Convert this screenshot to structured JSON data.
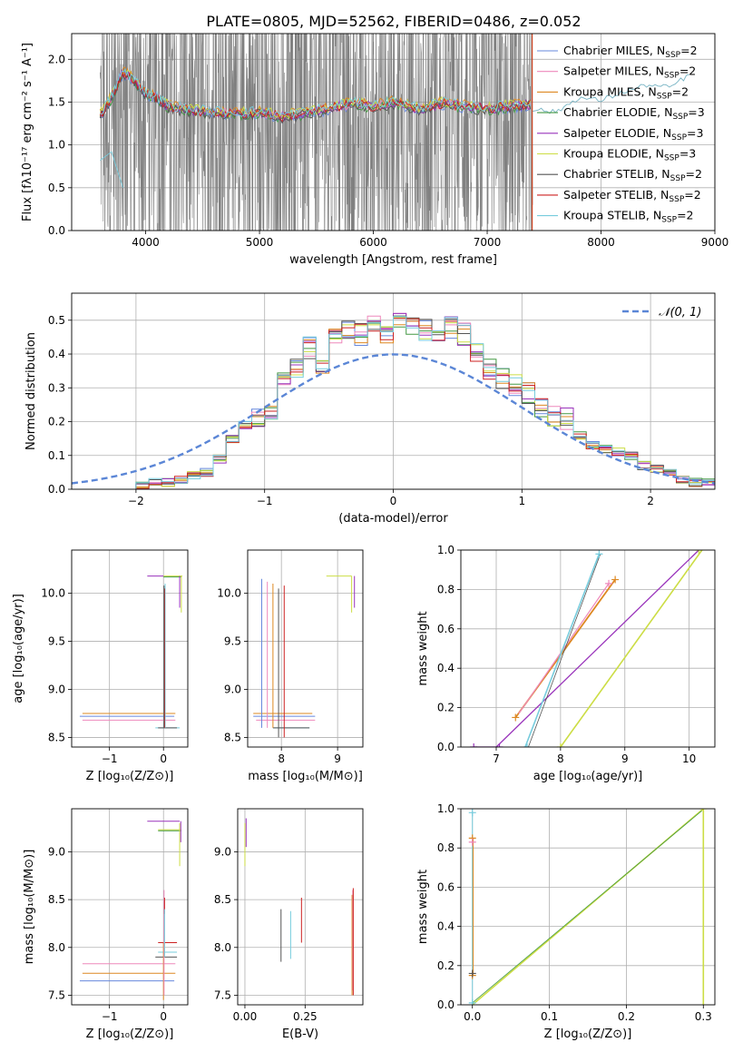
{
  "figure": {
    "title": "PLATE=0805, MJD=52562, FIBERID=0486, z=0.052",
    "legend_items": [
      {
        "label": "Chabrier MILES, N",
        "sub": "SSP",
        "suffix": "=2",
        "color": "#6688dd"
      },
      {
        "label": "Salpeter MILES, N",
        "sub": "SSP",
        "suffix": "=2",
        "color": "#ee88bb"
      },
      {
        "label": "Kroupa MILES, N",
        "sub": "SSP",
        "suffix": "=2",
        "color": "#dd8822"
      },
      {
        "label": "Chabrier ELODIE, N",
        "sub": "SSP",
        "suffix": "=3",
        "color": "#449944"
      },
      {
        "label": "Salpeter ELODIE, N",
        "sub": "SSP",
        "suffix": "=3",
        "color": "#9933bb"
      },
      {
        "label": "Kroupa ELODIE, N",
        "sub": "SSP",
        "suffix": "=3",
        "color": "#ccdd44"
      },
      {
        "label": "Chabrier STELIB, N",
        "sub": "SSP",
        "suffix": "=2",
        "color": "#555555"
      },
      {
        "label": "Salpeter STELIB, N",
        "sub": "SSP",
        "suffix": "=2",
        "color": "#cc2222"
      },
      {
        "label": "Kroupa STELIB, N",
        "sub": "SSP",
        "suffix": "=2",
        "color": "#77ccdd"
      }
    ],
    "normal_legend": "𝒩(0, 1)",
    "colors": {
      "data_gray": "#808080",
      "normal_curve": "#5b86d6",
      "grid": "#b0b0b0"
    }
  },
  "chart_data": [
    {
      "type": "line",
      "name": "spectrum",
      "ylabel": "Flux [fλ10⁻¹⁷ erg cm⁻² s⁻¹ A⁻¹]",
      "xlabel": "wavelength [Angstrom, rest frame]",
      "xlim": [
        3350,
        9000
      ],
      "ylim": [
        0,
        2.3
      ],
      "xticks": [
        4000,
        5000,
        6000,
        7000,
        8000,
        9000
      ],
      "yticks": [
        0.0,
        0.5,
        1.0,
        1.5,
        2.0
      ],
      "data_range": [
        3600,
        7400
      ],
      "model_curve": {
        "x": [
          3600,
          3700,
          3800,
          3900,
          4000,
          4100,
          4200,
          4400,
          4600,
          4800,
          5000,
          5200,
          5400,
          5600,
          5800,
          6000,
          6200,
          6400,
          6600,
          6800,
          7000,
          7200,
          7400
        ],
        "y": [
          1.35,
          1.55,
          1.85,
          1.75,
          1.6,
          1.55,
          1.45,
          1.4,
          1.38,
          1.36,
          1.38,
          1.33,
          1.37,
          1.42,
          1.48,
          1.45,
          1.5,
          1.42,
          1.48,
          1.45,
          1.42,
          1.45,
          1.48
        ]
      },
      "stelib_tail": {
        "x": [
          7400,
          7600,
          7800,
          8000,
          8200,
          8400,
          8600,
          8800
        ],
        "y": [
          1.42,
          1.38,
          1.55,
          1.52,
          1.62,
          1.7,
          1.67,
          1.84
        ]
      }
    },
    {
      "type": "histogram",
      "name": "residuals",
      "xlabel": "(data-model)/error",
      "ylabel": "Normed distribution",
      "xlim": [
        -2.5,
        2.5
      ],
      "ylim": [
        0,
        0.58
      ],
      "xticks": [
        -2,
        -1,
        0,
        1,
        2
      ],
      "yticks": [
        0.0,
        0.1,
        0.2,
        0.3,
        0.4,
        0.5
      ],
      "bin_edges": [
        -2.5,
        -2.4,
        -2.3,
        -2.2,
        -2.1,
        -2.0,
        -1.9,
        -1.8,
        -1.7,
        -1.6,
        -1.5,
        -1.4,
        -1.3,
        -1.2,
        -1.1,
        -1.0,
        -0.9,
        -0.8,
        -0.7,
        -0.6,
        -0.5,
        -0.4,
        -0.3,
        -0.2,
        -0.1,
        0.0,
        0.1,
        0.2,
        0.3,
        0.4,
        0.5,
        0.6,
        0.7,
        0.8,
        0.9,
        1.0,
        1.1,
        1.2,
        1.3,
        1.4,
        1.5,
        1.6,
        1.7,
        1.8,
        1.9,
        2.0,
        2.1,
        2.2,
        2.3,
        2.4,
        2.5
      ],
      "values": [
        0.0,
        0.0,
        0.0,
        0.0,
        0.0,
        0.01,
        0.02,
        0.02,
        0.03,
        0.04,
        0.05,
        0.09,
        0.15,
        0.19,
        0.21,
        0.24,
        0.33,
        0.35,
        0.42,
        0.36,
        0.44,
        0.47,
        0.46,
        0.48,
        0.46,
        0.5,
        0.49,
        0.47,
        0.47,
        0.48,
        0.46,
        0.4,
        0.35,
        0.33,
        0.31,
        0.28,
        0.24,
        0.22,
        0.21,
        0.16,
        0.13,
        0.12,
        0.11,
        0.1,
        0.07,
        0.06,
        0.05,
        0.03,
        0.02,
        0.02
      ]
    },
    {
      "type": "scatter",
      "name": "Z-age",
      "xlabel": "Z [log₁₀(Z/Z⊙)]",
      "ylabel": "age [log₁₀(age/yr)]",
      "xlim": [
        -1.7,
        0.45
      ],
      "ylim": [
        8.4,
        10.45
      ],
      "xticks": [
        -1,
        0
      ],
      "yticks": [
        8.5,
        9.0,
        9.5,
        10.0
      ]
    },
    {
      "type": "scatter",
      "name": "mass-age",
      "xlabel": "mass [log₁₀(M/M⊙)]",
      "ylabel": "",
      "xlim": [
        7.4,
        9.45
      ],
      "ylim": [
        8.4,
        10.45
      ],
      "xticks": [
        8,
        9
      ],
      "yticks": [
        8.5,
        9.0,
        9.5,
        10.0
      ]
    },
    {
      "type": "line",
      "name": "age-mass-weight",
      "xlabel": "age [log₁₀(age/yr)]",
      "ylabel": "mass weight",
      "xlim": [
        6.45,
        10.4
      ],
      "ylim": [
        0,
        1.0
      ],
      "xticks": [
        7,
        8,
        9,
        10
      ],
      "yticks": [
        0.0,
        0.2,
        0.4,
        0.6,
        0.8,
        1.0
      ]
    },
    {
      "type": "scatter",
      "name": "Z-mass",
      "xlabel": "Z [log₁₀(Z/Z⊙)]",
      "ylabel": "mass [log₁₀(M/M⊙)]",
      "xlim": [
        -1.7,
        0.45
      ],
      "ylim": [
        7.4,
        9.45
      ],
      "xticks": [
        -1,
        0
      ],
      "yticks": [
        7.5,
        8.0,
        8.5,
        9.0
      ]
    },
    {
      "type": "scatter",
      "name": "EBV-mass",
      "xlabel": "E(B-V)",
      "ylabel": "",
      "xlim": [
        -0.03,
        0.49
      ],
      "ylim": [
        7.4,
        9.45
      ],
      "xticks": [
        0.0,
        0.25
      ],
      "yticks": [
        7.5,
        8.0,
        8.5,
        9.0
      ]
    },
    {
      "type": "line",
      "name": "Z-mass-weight",
      "xlabel": "Z [log₁₀(Z/Z⊙)]",
      "ylabel": "mass weight",
      "xlim": [
        -0.015,
        0.315
      ],
      "ylim": [
        0,
        1.0
      ],
      "xticks": [
        0.0,
        0.1,
        0.2,
        0.3
      ],
      "yticks": [
        0.0,
        0.2,
        0.4,
        0.6,
        0.8,
        1.0
      ]
    }
  ]
}
